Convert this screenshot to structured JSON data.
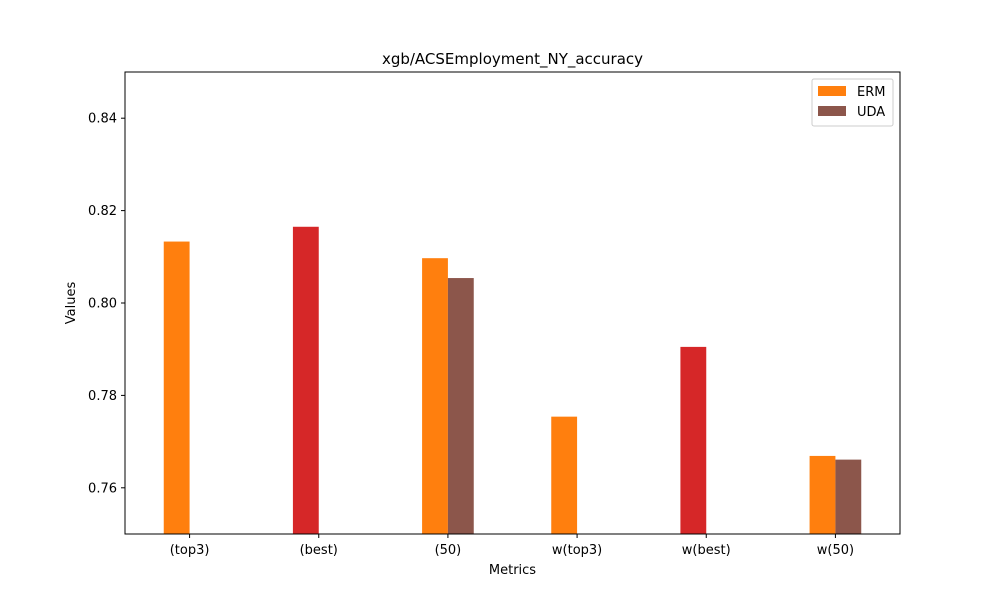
{
  "chart_data": {
    "type": "bar",
    "title": "xgb/ACSEmployment_NY_accuracy",
    "xlabel": "Metrics",
    "ylabel": "Values",
    "ylim": [
      0.75,
      0.85
    ],
    "yticks": [
      0.76,
      0.78,
      0.8,
      0.82,
      0.84
    ],
    "ytick_labels": [
      "0.76",
      "0.78",
      "0.80",
      "0.82",
      "0.84"
    ],
    "categories": [
      "(top3)",
      "(best)",
      "(50)",
      "w(top3)",
      "w(best)",
      "w(50)"
    ],
    "series": [
      {
        "name": "ERM",
        "color": "#ff7f0e",
        "values": [
          0.8133,
          null,
          0.8097,
          0.7754,
          null,
          0.7669
        ]
      },
      {
        "name": "UDA",
        "color": "#8c564b",
        "values": [
          null,
          null,
          0.8054,
          null,
          null,
          0.7661
        ]
      },
      {
        "color": "#d62728",
        "values": [
          null,
          0.8165,
          null,
          null,
          0.7905,
          null
        ]
      }
    ],
    "legend": {
      "position": "top-right",
      "entries": [
        "ERM",
        "UDA"
      ]
    },
    "grid": false
  }
}
